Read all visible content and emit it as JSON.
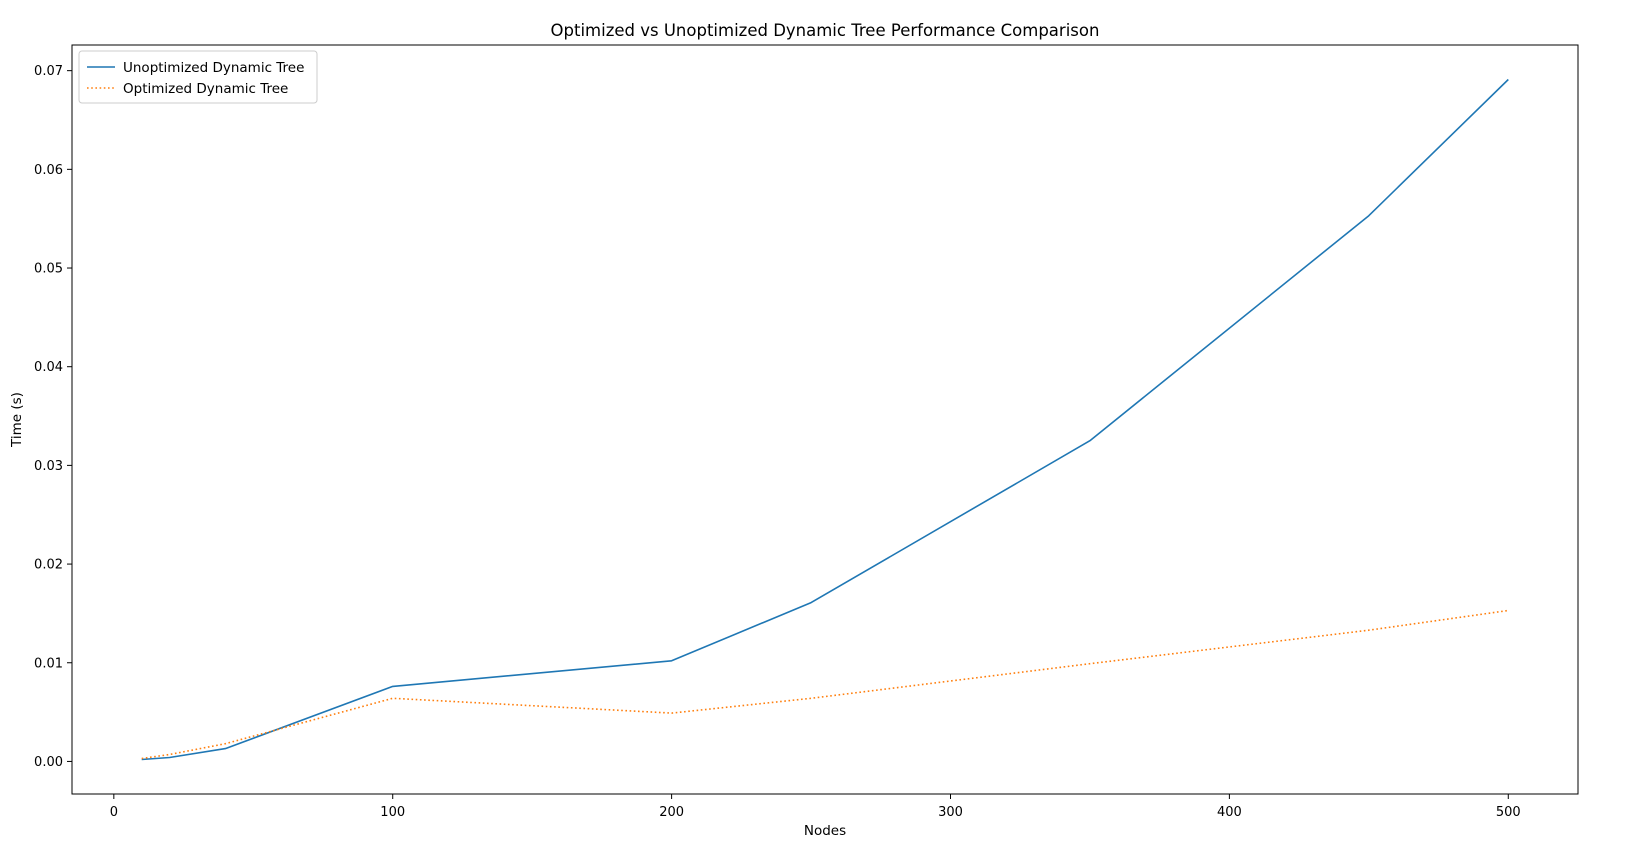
{
  "chart_data": {
    "type": "line",
    "title": "Optimized vs Unoptimized Dynamic Tree Performance Comparison",
    "xlabel": "Nodes",
    "ylabel": "Time (s)",
    "xlim": [
      -15,
      525
    ],
    "ylim": [
      -0.0033,
      0.0726
    ],
    "xticks": [
      0,
      100,
      200,
      300,
      400,
      500
    ],
    "xtick_labels": [
      "0",
      "100",
      "200",
      "300",
      "400",
      "500"
    ],
    "yticks": [
      0.0,
      0.01,
      0.02,
      0.03,
      0.04,
      0.05,
      0.06,
      0.07
    ],
    "ytick_labels": [
      "0.00",
      "0.01",
      "0.02",
      "0.03",
      "0.04",
      "0.05",
      "0.06",
      "0.07"
    ],
    "grid": false,
    "legend": "top-left",
    "series": [
      {
        "name": "Unoptimized Dynamic Tree",
        "color": "#1f77b4",
        "style": "solid",
        "x": [
          10,
          20,
          40,
          100,
          200,
          250,
          350,
          450,
          500
        ],
        "y": [
          0.0002,
          0.0004,
          0.0013,
          0.0076,
          0.0102,
          0.0161,
          0.0325,
          0.0553,
          0.0691
        ]
      },
      {
        "name": "Optimized Dynamic Tree",
        "color": "#ff7f0e",
        "style": "dotted",
        "x": [
          10,
          20,
          40,
          100,
          200,
          250,
          350,
          450,
          500
        ],
        "y": [
          0.0003,
          0.0007,
          0.0018,
          0.0064,
          0.0049,
          0.0064,
          0.0099,
          0.0133,
          0.0153
        ]
      }
    ]
  }
}
